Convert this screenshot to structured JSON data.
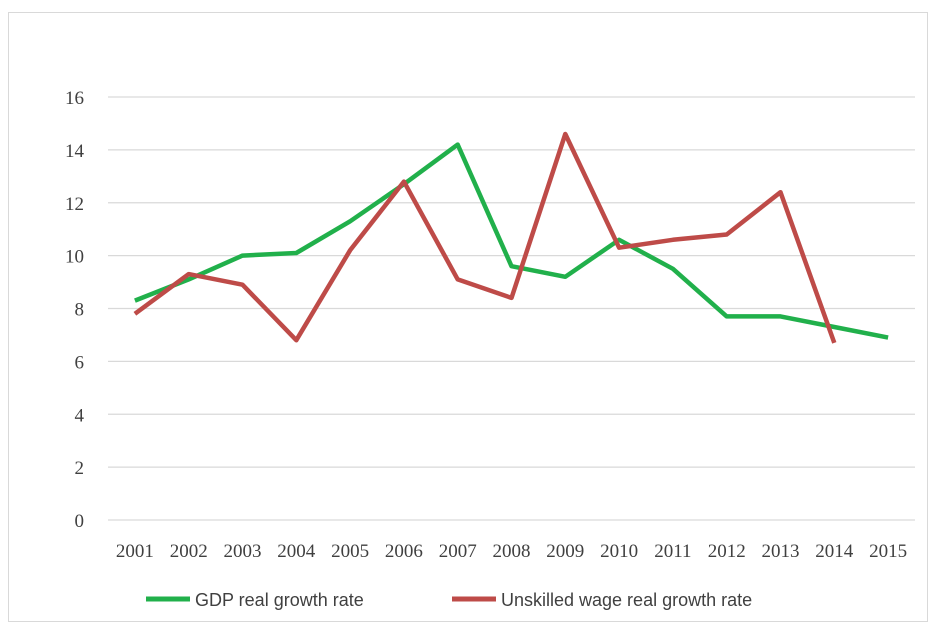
{
  "chart_data": {
    "type": "line",
    "x": [
      "2001",
      "2002",
      "2003",
      "2004",
      "2005",
      "2006",
      "2007",
      "2008",
      "2009",
      "2010",
      "2011",
      "2012",
      "2013",
      "2014",
      "2015"
    ],
    "ylim": [
      0,
      16
    ],
    "yticks": [
      0,
      2,
      4,
      6,
      8,
      10,
      12,
      14,
      16
    ],
    "grid": true,
    "legend_position": "bottom",
    "series": [
      {
        "name": "GDP real growth rate",
        "color": "#21b04b",
        "values": [
          8.3,
          9.1,
          10.0,
          10.1,
          11.3,
          12.7,
          14.2,
          9.6,
          9.2,
          10.6,
          9.5,
          7.7,
          7.7,
          7.3,
          6.9
        ]
      },
      {
        "name": "Unskilled wage real growth rate",
        "color": "#be4b48",
        "values": [
          7.8,
          9.3,
          8.9,
          6.8,
          10.2,
          12.8,
          9.1,
          8.4,
          14.6,
          10.3,
          10.6,
          10.8,
          12.4,
          6.7,
          null
        ]
      }
    ]
  }
}
